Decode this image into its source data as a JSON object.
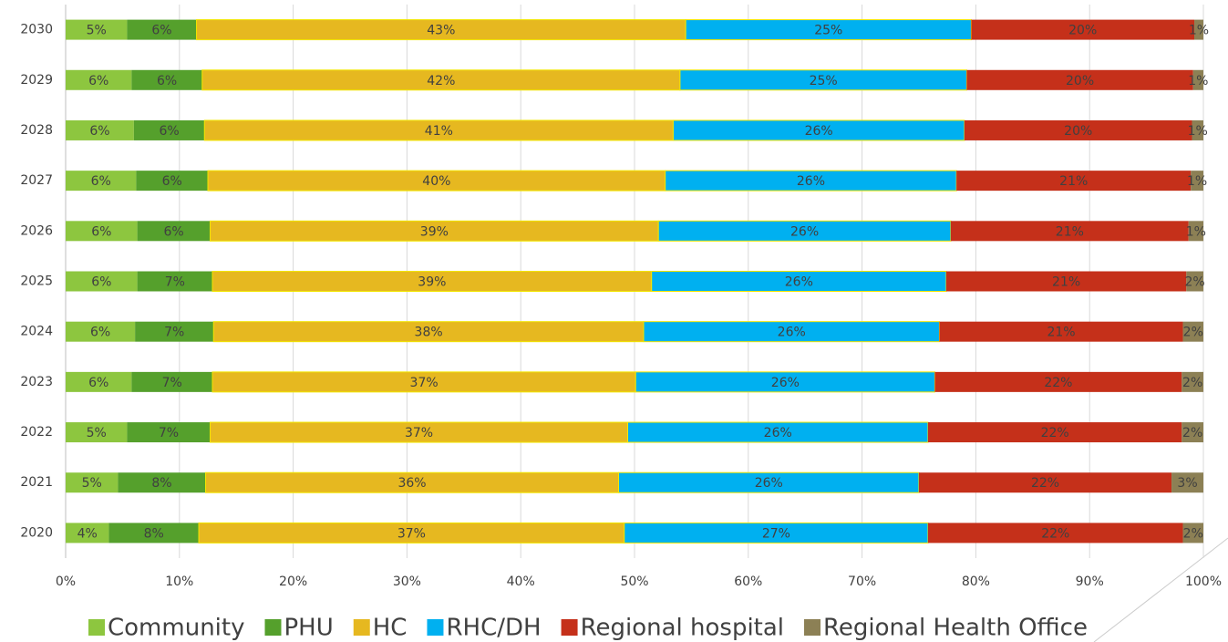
{
  "chart_data": {
    "type": "stacked_barh",
    "categories": [
      "2020",
      "2021",
      "2022",
      "2023",
      "2024",
      "2025",
      "2026",
      "2027",
      "2028",
      "2029",
      "2030"
    ],
    "series": [
      {
        "name": "Community",
        "color": "#8dc63f",
        "values": [
          3.8,
          4.6,
          5.4,
          5.8,
          6.1,
          6.3,
          6.3,
          6.2,
          6.0,
          5.8,
          5.4
        ],
        "value_labels": [
          "4%",
          "5%",
          "5%",
          "6%",
          "6%",
          "6%",
          "6%",
          "6%",
          "6%",
          "6%",
          "5%"
        ]
      },
      {
        "name": "PHU",
        "color": "#55a02c",
        "values": [
          7.9,
          7.7,
          7.3,
          7.1,
          6.9,
          6.6,
          6.4,
          6.3,
          6.2,
          6.2,
          6.1
        ],
        "value_labels": [
          "8%",
          "8%",
          "7%",
          "7%",
          "7%",
          "7%",
          "6%",
          "6%",
          "6%",
          "6%",
          "6%"
        ]
      },
      {
        "name": "HC",
        "color": "#e6b820",
        "values": [
          37.4,
          36.3,
          36.7,
          37.2,
          37.8,
          38.6,
          39.4,
          40.2,
          41.2,
          42.0,
          43.0
        ],
        "value_labels": [
          "37%",
          "36%",
          "37%",
          "37%",
          "38%",
          "39%",
          "39%",
          "40%",
          "41%",
          "42%",
          "43%"
        ]
      },
      {
        "name": "RHC/DH",
        "color": "#00b0f0",
        "values": [
          26.7,
          26.4,
          26.4,
          26.3,
          26.0,
          25.9,
          25.7,
          25.6,
          25.6,
          25.2,
          25.1
        ],
        "value_labels": [
          "27%",
          "26%",
          "26%",
          "26%",
          "26%",
          "26%",
          "26%",
          "26%",
          "26%",
          "25%",
          "25%"
        ]
      },
      {
        "name": "Regional hospital",
        "color": "#c5301a",
        "values": [
          22.4,
          22.2,
          22.3,
          21.7,
          21.4,
          21.1,
          20.9,
          20.6,
          20.0,
          19.9,
          19.6
        ],
        "value_labels": [
          "22%",
          "22%",
          "22%",
          "22%",
          "21%",
          "21%",
          "21%",
          "21%",
          "20%",
          "20%",
          "20%"
        ]
      },
      {
        "name": "Regional Health Office",
        "color": "#8c8055",
        "values": [
          1.8,
          2.8,
          1.9,
          1.9,
          1.8,
          1.5,
          1.3,
          1.1,
          1.0,
          0.9,
          0.8
        ],
        "value_labels": [
          "2%",
          "3%",
          "2%",
          "2%",
          "2%",
          "2%",
          "1%",
          "1%",
          "1%",
          "1%",
          "1%"
        ]
      }
    ],
    "xlim": [
      0,
      100
    ],
    "xticks": [
      {
        "value": 0,
        "label": "0%"
      },
      {
        "value": 10,
        "label": "10%"
      },
      {
        "value": 20,
        "label": "20%"
      },
      {
        "value": 30,
        "label": "30%"
      },
      {
        "value": 40,
        "label": "40%"
      },
      {
        "value": 50,
        "label": "50%"
      },
      {
        "value": 60,
        "label": "60%"
      },
      {
        "value": 70,
        "label": "70%"
      },
      {
        "value": 80,
        "label": "80%"
      },
      {
        "value": 90,
        "label": "90%"
      },
      {
        "value": 100,
        "label": "100%"
      }
    ],
    "grid": true,
    "legend": "bottom"
  }
}
